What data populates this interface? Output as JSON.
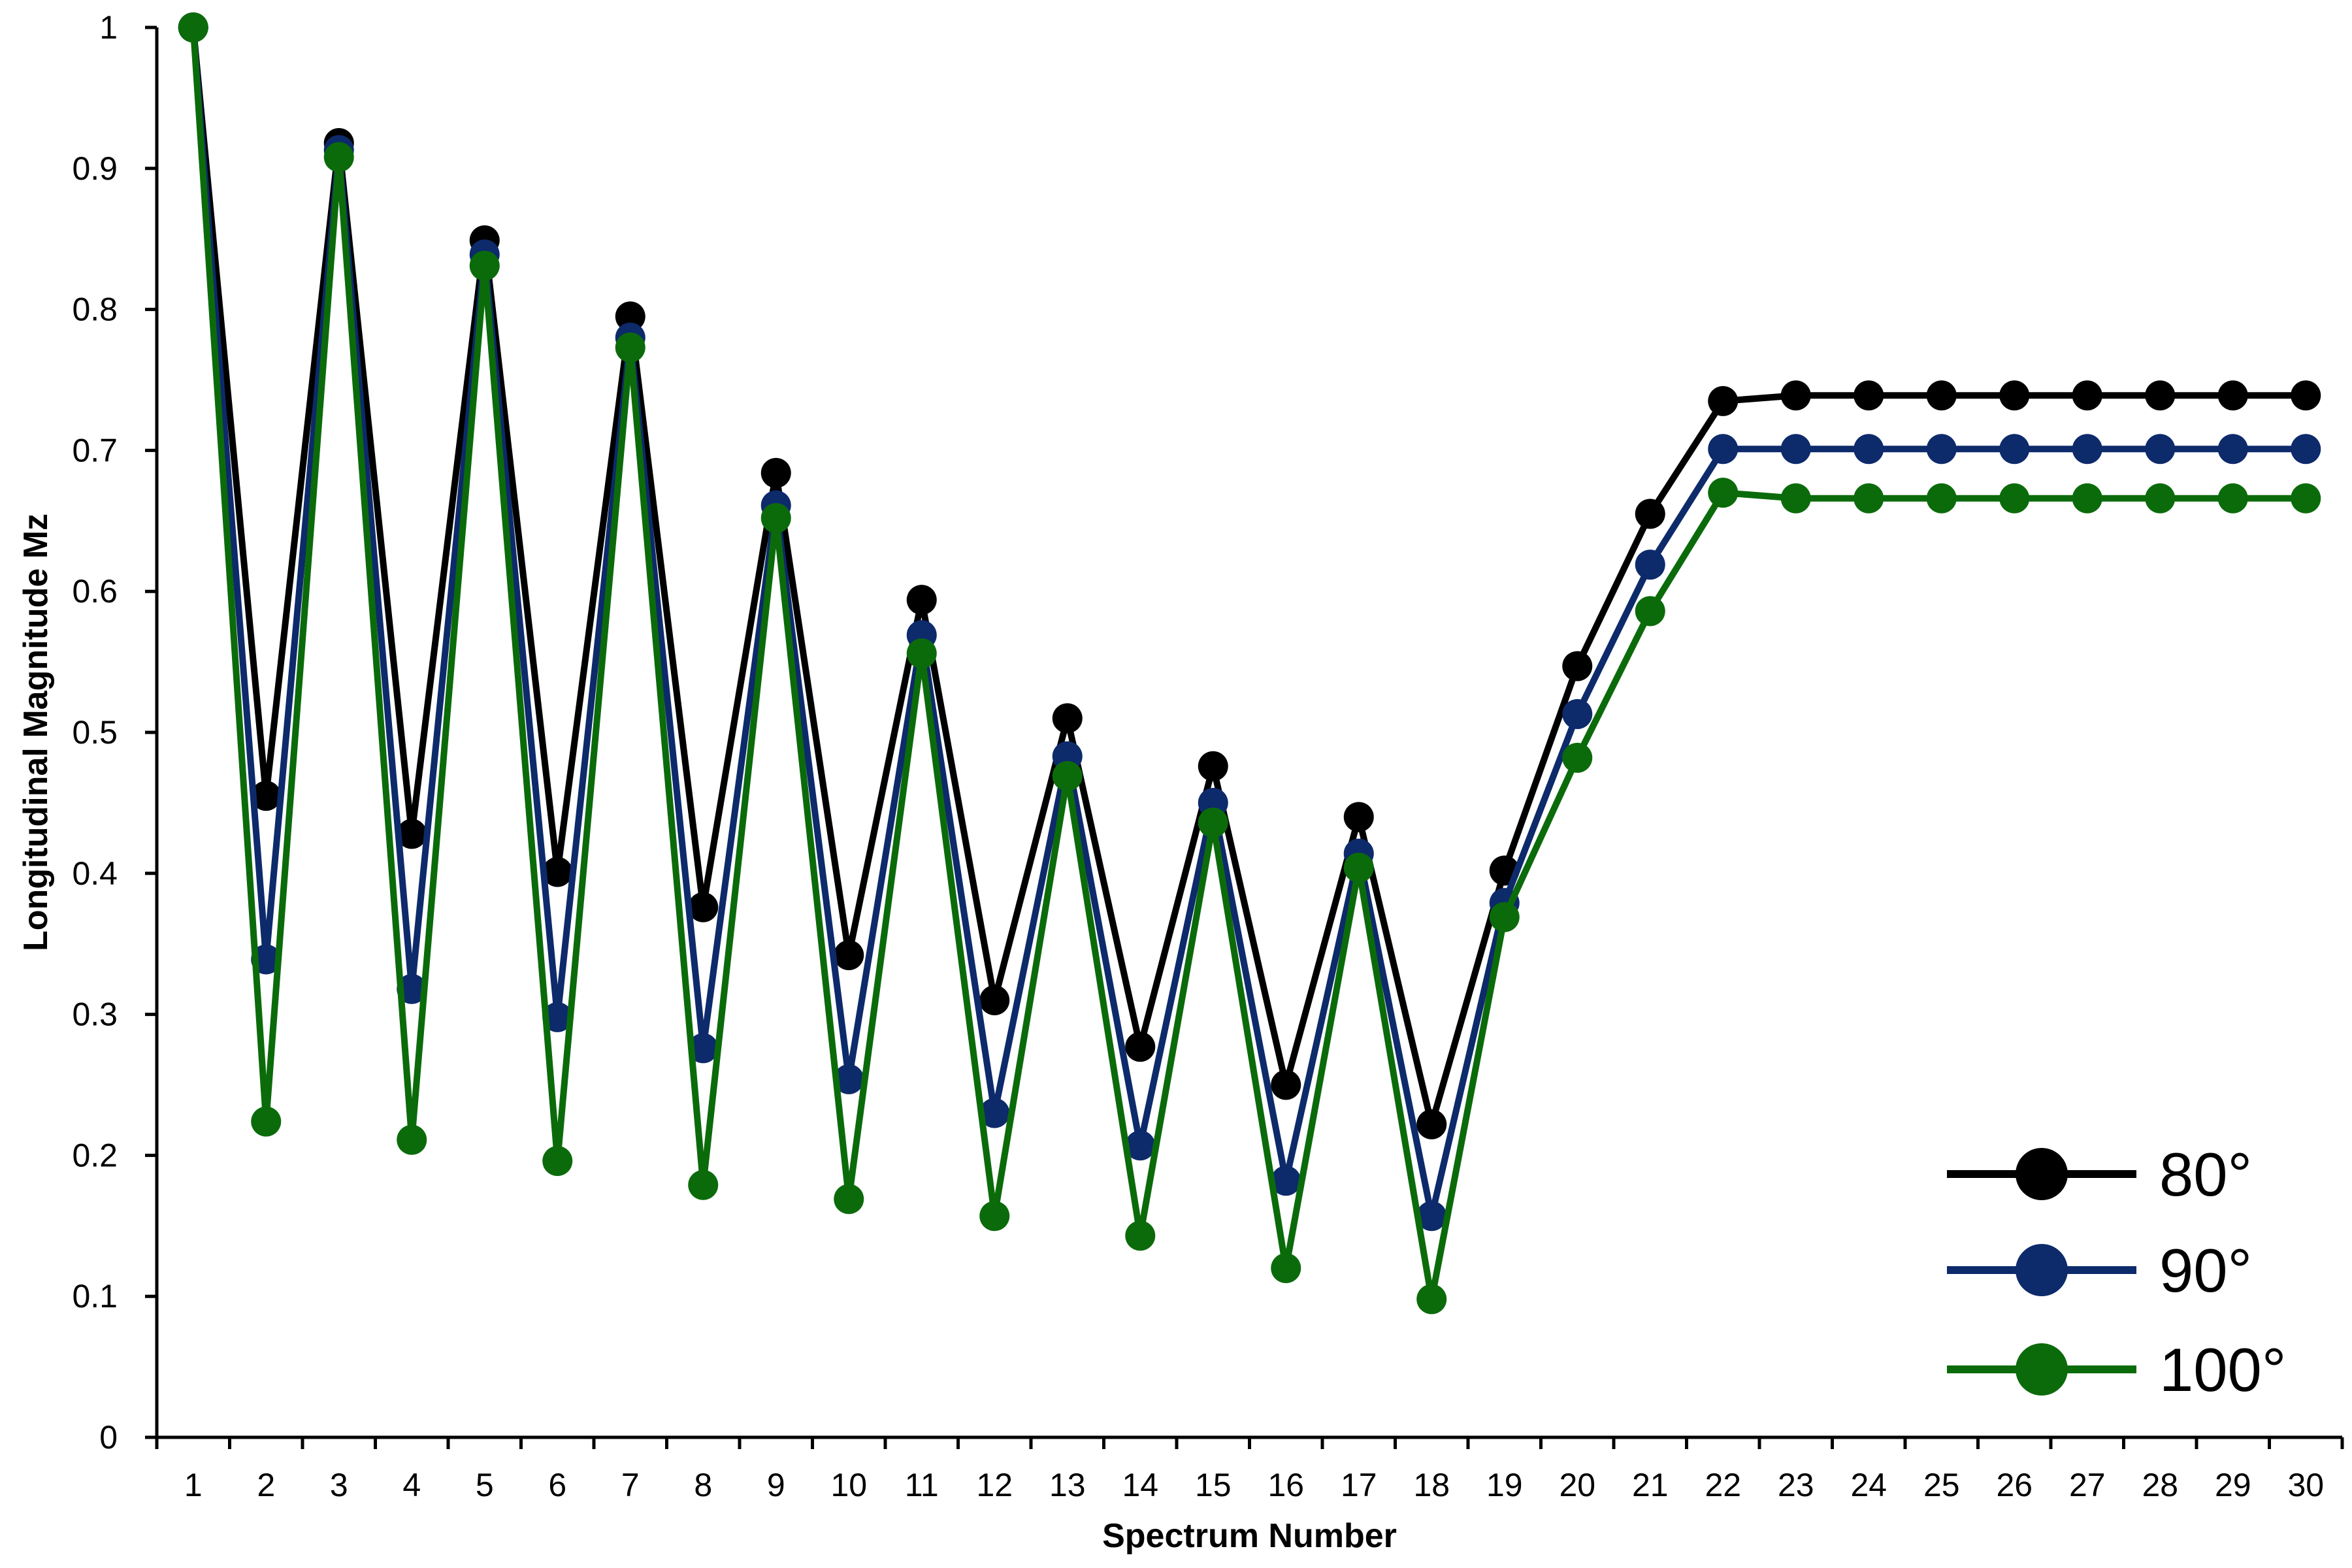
{
  "chart_data": {
    "type": "line",
    "title": "",
    "xlabel": "Spectrum Number",
    "ylabel": "Longitudinal Magnitude Mz",
    "categories": [
      "1",
      "2",
      "3",
      "4",
      "5",
      "6",
      "7",
      "8",
      "9",
      "10",
      "11",
      "12",
      "13",
      "14",
      "15",
      "16",
      "17",
      "18",
      "19",
      "20",
      "21",
      "22",
      "23",
      "24",
      "25",
      "26",
      "27",
      "28",
      "29",
      "30"
    ],
    "ylim": [
      0,
      1
    ],
    "yticks": [
      "0",
      "0.1",
      "0.2",
      "0.3",
      "0.4",
      "0.5",
      "0.6",
      "0.7",
      "0.8",
      "0.9",
      "1"
    ],
    "grid": false,
    "legend_position": "bottom-right",
    "series": [
      {
        "name": "80°",
        "color": "#000000",
        "values": [
          1.0,
          0.455,
          0.918,
          0.428,
          0.849,
          0.401,
          0.795,
          0.376,
          0.684,
          0.342,
          0.594,
          0.31,
          0.51,
          0.277,
          0.476,
          0.25,
          0.44,
          0.222,
          0.402,
          0.547,
          0.655,
          0.735,
          0.739,
          0.739,
          0.739,
          0.739,
          0.739,
          0.739,
          0.739,
          0.739
        ]
      },
      {
        "name": "90°",
        "color": "#0d2a6b",
        "values": [
          1.0,
          0.339,
          0.913,
          0.318,
          0.839,
          0.298,
          0.78,
          0.276,
          0.661,
          0.254,
          0.569,
          0.23,
          0.483,
          0.207,
          0.45,
          0.182,
          0.414,
          0.157,
          0.379,
          0.513,
          0.619,
          0.701,
          0.701,
          0.701,
          0.701,
          0.701,
          0.701,
          0.701,
          0.701,
          0.701
        ]
      },
      {
        "name": "100°",
        "color": "#0b6b0b",
        "values": [
          1.0,
          0.224,
          0.908,
          0.211,
          0.831,
          0.196,
          0.773,
          0.179,
          0.652,
          0.169,
          0.556,
          0.157,
          0.469,
          0.143,
          0.436,
          0.12,
          0.404,
          0.098,
          0.369,
          0.482,
          0.586,
          0.67,
          0.666,
          0.666,
          0.666,
          0.666,
          0.666,
          0.666,
          0.666,
          0.666
        ]
      }
    ]
  }
}
